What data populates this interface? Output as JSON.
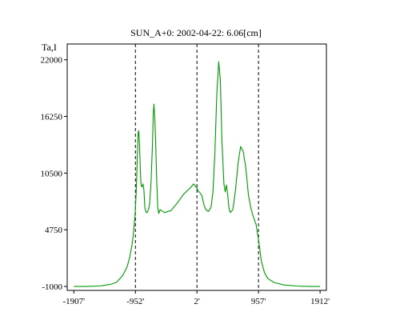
{
  "chart_data": {
    "type": "line",
    "title": "SUN_A+0: 2002-04-22: 6.06[cm]",
    "ylabel": "Ta,I",
    "xlabel": "",
    "x_ticks": [
      "-1907'",
      "-952'",
      "2'",
      "957'",
      "1912'"
    ],
    "x_tick_values": [
      -1907,
      -952,
      2,
      957,
      1912
    ],
    "y_ticks": [
      "22000",
      "16250",
      "10500",
      "4750",
      "-1000"
    ],
    "y_tick_values": [
      22000,
      16250,
      10500,
      4750,
      -1000
    ],
    "xlim": [
      -2010,
      2010
    ],
    "ylim": [
      -1400,
      23600
    ],
    "vlines": [
      -952,
      2,
      957
    ],
    "grid": false,
    "legend": "none",
    "line_color": "#009900",
    "series": [
      {
        "values": [
          [
            -1907,
            -1000
          ],
          [
            -1700,
            -1000
          ],
          [
            -1500,
            -950
          ],
          [
            -1350,
            -800
          ],
          [
            -1250,
            -600
          ],
          [
            -1150,
            100
          ],
          [
            -1080,
            1000
          ],
          [
            -1040,
            2000
          ],
          [
            -1000,
            3400
          ],
          [
            -975,
            4900
          ],
          [
            -955,
            6500
          ],
          [
            -940,
            8500
          ],
          [
            -925,
            11500
          ],
          [
            -910,
            14600
          ],
          [
            -900,
            14800
          ],
          [
            -890,
            13500
          ],
          [
            -875,
            10700
          ],
          [
            -865,
            9300
          ],
          [
            -850,
            9100
          ],
          [
            -835,
            9400
          ],
          [
            -820,
            8800
          ],
          [
            -805,
            7000
          ],
          [
            -785,
            6500
          ],
          [
            -770,
            6500
          ],
          [
            -750,
            6800
          ],
          [
            -730,
            7500
          ],
          [
            -710,
            9600
          ],
          [
            -690,
            13000
          ],
          [
            -675,
            16500
          ],
          [
            -665,
            17500
          ],
          [
            -650,
            16000
          ],
          [
            -635,
            13000
          ],
          [
            -620,
            9500
          ],
          [
            -605,
            7000
          ],
          [
            -590,
            6400
          ],
          [
            -570,
            6800
          ],
          [
            -550,
            6700
          ],
          [
            -500,
            6500
          ],
          [
            -400,
            6700
          ],
          [
            -300,
            7500
          ],
          [
            -200,
            8400
          ],
          [
            -100,
            9000
          ],
          [
            -50,
            9400
          ],
          [
            0,
            9000
          ],
          [
            20,
            8700
          ],
          [
            50,
            8500
          ],
          [
            80,
            8200
          ],
          [
            110,
            7300
          ],
          [
            140,
            6800
          ],
          [
            180,
            6600
          ],
          [
            220,
            7000
          ],
          [
            250,
            8500
          ],
          [
            280,
            12500
          ],
          [
            310,
            18500
          ],
          [
            340,
            21800
          ],
          [
            365,
            20000
          ],
          [
            390,
            13800
          ],
          [
            420,
            9400
          ],
          [
            440,
            8600
          ],
          [
            460,
            9300
          ],
          [
            480,
            8200
          ],
          [
            500,
            6900
          ],
          [
            520,
            6500
          ],
          [
            560,
            6800
          ],
          [
            600,
            8800
          ],
          [
            640,
            11500
          ],
          [
            680,
            13200
          ],
          [
            720,
            12700
          ],
          [
            760,
            11000
          ],
          [
            800,
            8300
          ],
          [
            840,
            6900
          ],
          [
            880,
            6000
          ],
          [
            920,
            5300
          ],
          [
            960,
            3600
          ],
          [
            1000,
            1600
          ],
          [
            1050,
            400
          ],
          [
            1100,
            -200
          ],
          [
            1200,
            -600
          ],
          [
            1350,
            -850
          ],
          [
            1550,
            -950
          ],
          [
            1750,
            -1000
          ],
          [
            1912,
            -1000
          ]
        ]
      }
    ]
  }
}
